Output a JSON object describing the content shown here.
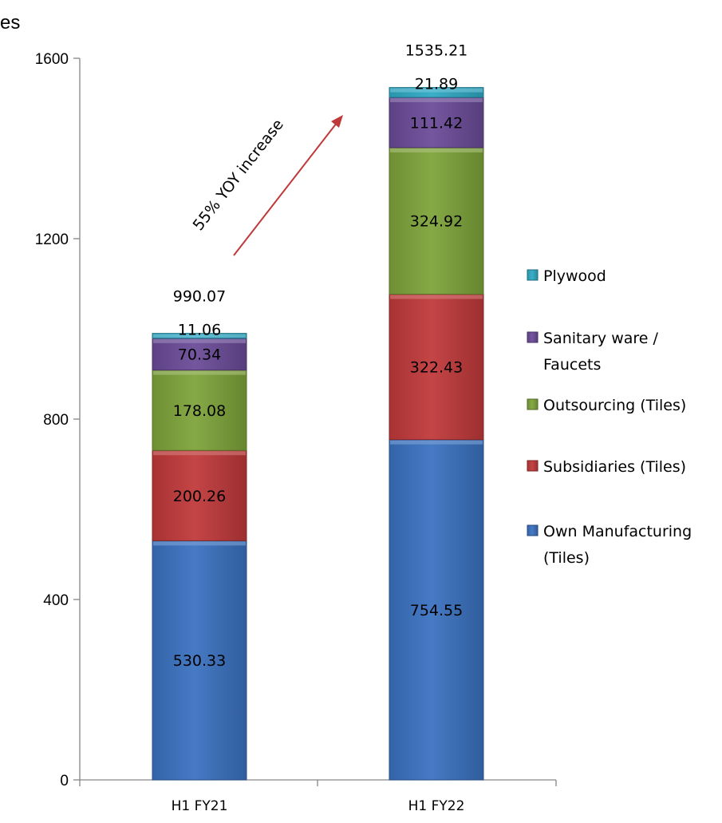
{
  "chart_data": {
    "type": "bar",
    "stacked": true,
    "title": "",
    "unit_label_fragment": "es",
    "categories": [
      "H1 FY21",
      "H1 FY22"
    ],
    "series": [
      {
        "name": "Own Manufacturing (Tiles)",
        "legend_lines": [
          "Own Manufacturing",
          "(Tiles)"
        ],
        "color": "#3a72c0",
        "values": [
          530.33,
          754.55
        ]
      },
      {
        "name": "Subsidiaries (Tiles)",
        "legend_lines": [
          "Subsidiaries (Tiles)"
        ],
        "color": "#c0393a",
        "values": [
          200.26,
          322.43
        ]
      },
      {
        "name": "Outsourcing (Tiles)",
        "legend_lines": [
          "Outsourcing (Tiles)"
        ],
        "color": "#7ea33a",
        "values": [
          178.08,
          324.92
        ]
      },
      {
        "name": "Sanitary ware / Faucets",
        "legend_lines": [
          "Sanitary ware /",
          "Faucets"
        ],
        "color": "#6b4b98",
        "values": [
          70.34,
          111.42
        ]
      },
      {
        "name": "Plywood",
        "legend_lines": [
          "Plywood"
        ],
        "color": "#30a9c4",
        "values": [
          11.06,
          21.89
        ]
      }
    ],
    "totals": [
      990.07,
      1535.21
    ],
    "data_labels": [
      [
        "530.33",
        "754.55"
      ],
      [
        "200.26",
        "322.43"
      ],
      [
        "178.08",
        "324.92"
      ],
      [
        "70.34",
        "111.42"
      ],
      [
        "11.06",
        "21.89"
      ]
    ],
    "total_labels": [
      "990.07",
      "1535.21"
    ],
    "ylim": [
      0,
      1600
    ],
    "yticks": [
      0,
      400,
      800,
      1200,
      1600
    ],
    "xlabel": "",
    "ylabel": "",
    "grid": false,
    "legend_position": "right",
    "annotation": {
      "text": "55% YOY increase",
      "arrow_color": "#c0393a"
    }
  }
}
